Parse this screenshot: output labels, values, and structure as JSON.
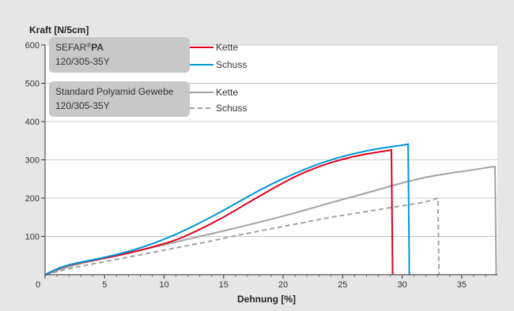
{
  "chart_data": {
    "type": "line",
    "ylabel": "Kraft [N/5cm]",
    "xlabel": "Dehnung [%]",
    "xlim": [
      0,
      38
    ],
    "ylim": [
      0,
      600
    ],
    "x_ticks": [
      0,
      5,
      10,
      15,
      20,
      25,
      30,
      35
    ],
    "y_ticks": [
      100,
      200,
      300,
      400,
      500,
      600
    ],
    "grid": "horizontal",
    "legend_groups": [
      {
        "brand": "SEFAR",
        "reg": "®",
        "name": "PA",
        "code": "120/305-35Y"
      },
      {
        "name": "Standard Polyamid Gewebe",
        "code": "120/305-35Y"
      }
    ],
    "series": [
      {
        "name": "Kette",
        "group": 0,
        "color": "#e2001a",
        "dash": "none",
        "x": [
          0,
          1,
          2,
          3,
          5,
          7,
          9,
          11,
          13,
          15,
          17,
          19,
          21,
          23,
          25,
          27,
          29,
          29.1,
          29.2
        ],
        "y": [
          0,
          15,
          25,
          32,
          43,
          56,
          72,
          90,
          118,
          150,
          187,
          223,
          257,
          283,
          302,
          316,
          325,
          326,
          0
        ]
      },
      {
        "name": "Schuss",
        "group": 0,
        "color": "#0097d9",
        "dash": "none",
        "x": [
          0,
          1,
          2,
          3,
          5,
          7,
          9,
          11,
          13,
          15,
          17,
          19,
          21,
          23,
          25,
          27,
          29,
          30.4,
          30.5,
          30.6
        ],
        "y": [
          0,
          16,
          26,
          33,
          45,
          60,
          80,
          105,
          135,
          168,
          203,
          237,
          265,
          290,
          309,
          324,
          334,
          340,
          341,
          0
        ]
      },
      {
        "name": "Kette",
        "group": 1,
        "color": "#a2a2a2",
        "dash": "none",
        "x": [
          0,
          2,
          4,
          6,
          8,
          10,
          12,
          14,
          16,
          18,
          20,
          22,
          24,
          26,
          28,
          30,
          32,
          34,
          36,
          37.5,
          37.8,
          37.9
        ],
        "y": [
          0,
          22,
          36,
          50,
          64,
          78,
          93,
          107,
          122,
          137,
          153,
          170,
          188,
          205,
          222,
          240,
          255,
          265,
          274,
          282,
          282,
          0
        ]
      },
      {
        "name": "Schuss",
        "group": 1,
        "color": "#a2a2a2",
        "dash": "6,4",
        "x": [
          0,
          2,
          4,
          6,
          8,
          10,
          12,
          14,
          16,
          18,
          20,
          22,
          24,
          26,
          28,
          30,
          32,
          33,
          33.1
        ],
        "y": [
          0,
          16,
          28,
          40,
          52,
          64,
          76,
          88,
          102,
          114,
          126,
          138,
          150,
          160,
          170,
          180,
          190,
          200,
          0
        ]
      }
    ]
  }
}
